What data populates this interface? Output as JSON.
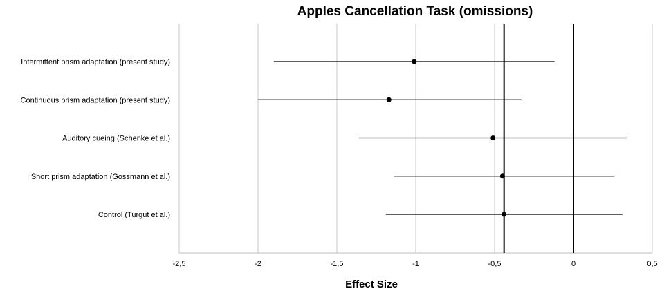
{
  "chart_data": {
    "type": "forest",
    "title": "Apples Cancellation Task (omissions)",
    "xlabel": "Effect Size",
    "xlim": [
      -2.5,
      0.5
    ],
    "xticks": [
      -2.5,
      -2,
      -1.5,
      -1,
      -0.5,
      0,
      0.5
    ],
    "xtick_labels": [
      "-2,5",
      "-2",
      "-1,5",
      "-1",
      "-0,5",
      "0",
      "0,5"
    ],
    "grid": true,
    "reference_lines": [
      -0.44,
      0
    ],
    "categories": [
      "Intermittent prism adaptation (present study)",
      "Continuous prism adaptation (present study)",
      "Auditory cueing (Schenke et al.)",
      "Short prism adaptation (Gossmann et al.)",
      "Control (Turgut et al.)"
    ],
    "estimates": [
      -1.01,
      -1.17,
      -0.51,
      -0.45,
      -0.44
    ],
    "ci_lower": [
      -1.9,
      -2.0,
      -1.36,
      -1.14,
      -1.19
    ],
    "ci_upper": [
      -0.12,
      -0.33,
      0.34,
      0.26,
      0.31
    ]
  },
  "colors": {
    "grid": "#c8c8c8",
    "marks": "#000000"
  }
}
